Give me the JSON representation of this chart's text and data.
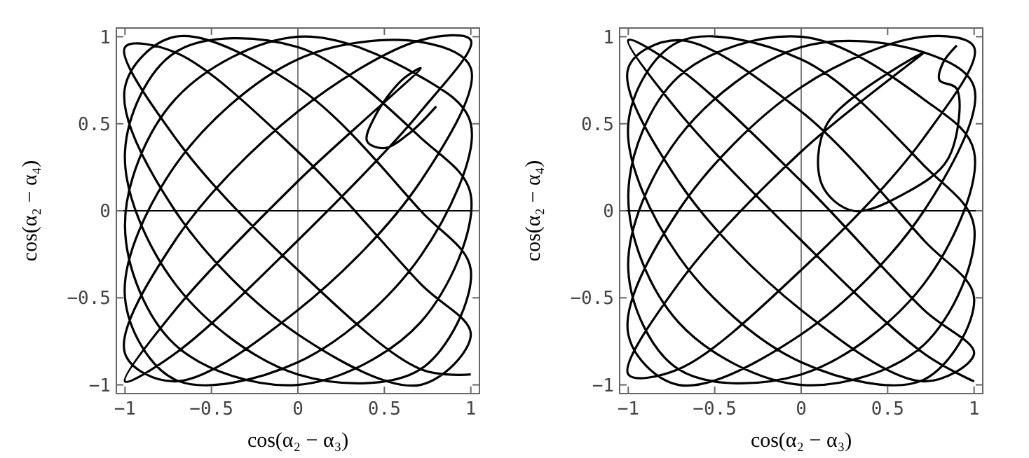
{
  "chart_data": [
    {
      "type": "line",
      "xlabel": "cos(α₂ − α₃)",
      "ylabel": "cos(α₂ − α₄)",
      "xlim": [
        -1.05,
        1.05
      ],
      "ylim": [
        -1.05,
        1.05
      ],
      "xticks": [
        -1,
        -0.5,
        0,
        0.5,
        1
      ],
      "yticks": [
        -1,
        -0.5,
        0,
        0.5,
        1
      ],
      "grid": false,
      "marker": "none",
      "line_style": "solid",
      "ref_lines": [
        {
          "axis": "x",
          "value": 0,
          "color": "#808080"
        },
        {
          "axis": "y",
          "value": 0,
          "color": "#000000"
        }
      ],
      "series": [
        {
          "color": "#000000",
          "x": [
            1,
            0.71,
            0,
            -0.71,
            -1,
            -0.71,
            0,
            0.71,
            1,
            0.71,
            0,
            -0.71,
            -1,
            -0.71,
            0,
            0.71,
            1,
            0.71,
            0,
            -0.71,
            -1,
            -0.71,
            0,
            0.71,
            1,
            0.71,
            0,
            -0.71,
            -1,
            -0.71,
            0,
            0.71,
            1,
            0.71,
            0,
            -0.71,
            -1,
            -0.71,
            0,
            0.71,
            1,
            0.71,
            0,
            -0.71,
            -1,
            -0.71,
            0,
            0.71,
            1,
            0.71,
            0,
            -0.71,
            -1,
            -0.71,
            0,
            0.71,
            0.6,
            0.45,
            0.4,
            0.5,
            0.65,
            0.8
          ],
          "values": [
            -0.94,
            -0.91,
            -0.34,
            0.42,
            0.94,
            0.91,
            0.34,
            -0.42,
            -0.71,
            -1,
            -0.71,
            0,
            0.71,
            1,
            0.71,
            0,
            -0.34,
            -0.91,
            -0.94,
            -0.42,
            0.34,
            0.91,
            0.94,
            0.42,
            0.09,
            -0.64,
            -1,
            -0.77,
            -0.09,
            0.64,
            1,
            0.77,
            0.5,
            -0.26,
            -0.87,
            -0.97,
            -0.5,
            0.26,
            0.87,
            0.97,
            0.82,
            0.17,
            -0.57,
            -0.98,
            -0.82,
            -0.17,
            0.57,
            0.98,
            0.98,
            0.57,
            -0.17,
            -0.82,
            -0.98,
            -0.57,
            0.17,
            0.82,
            0.75,
            0.55,
            0.4,
            0.36,
            0.45,
            0.6
          ]
        }
      ]
    },
    {
      "type": "line",
      "xlabel": "cos(α₂ − α₃)",
      "ylabel": "cos(α₂ − α₄)",
      "xlim": [
        -1.05,
        1.05
      ],
      "ylim": [
        -1.05,
        1.05
      ],
      "xticks": [
        -1,
        -0.5,
        0,
        0.5,
        1
      ],
      "yticks": [
        -1,
        -0.5,
        0,
        0.5,
        1
      ],
      "grid": false,
      "marker": "none",
      "line_style": "solid",
      "ref_lines": [
        {
          "axis": "x",
          "value": 0,
          "color": "#808080"
        },
        {
          "axis": "y",
          "value": 0,
          "color": "#000000"
        }
      ],
      "series": [
        {
          "color": "#000000",
          "x": [
            1,
            0.71,
            0,
            -0.71,
            -1,
            -0.71,
            0,
            0.71,
            1,
            0.71,
            0,
            -0.71,
            -1,
            -0.71,
            0,
            0.71,
            1,
            0.71,
            0,
            -0.71,
            -1,
            -0.71,
            0,
            0.71,
            1,
            0.71,
            0,
            -0.71,
            -1,
            -0.71,
            0,
            0.71,
            1,
            0.71,
            0,
            -0.71,
            -1,
            -0.71,
            0,
            0.71,
            1,
            0.71,
            0,
            -0.71,
            -1,
            -0.71,
            0,
            0.71,
            1,
            0.71,
            0,
            -0.71,
            -1,
            -0.71,
            0,
            0.71,
            0.15,
            0.12,
            0.3,
            0.6,
            0.85,
            0.9,
            0.8,
            0.82,
            0.9
          ],
          "values": [
            -0.98,
            -0.82,
            -0.17,
            0.57,
            0.98,
            0.82,
            0.17,
            -0.57,
            -0.82,
            -0.98,
            -0.57,
            0.17,
            0.82,
            0.98,
            0.57,
            -0.17,
            -0.5,
            -0.97,
            -0.87,
            -0.26,
            0.5,
            0.97,
            0.87,
            0.26,
            -0.09,
            -0.77,
            -1,
            -0.64,
            0.09,
            0.77,
            1,
            0.64,
            0.34,
            -0.42,
            -0.94,
            -0.91,
            -0.34,
            0.42,
            0.94,
            0.91,
            0.71,
            0,
            -0.71,
            -1,
            -0.71,
            0,
            0.71,
            1,
            0.94,
            0.42,
            -0.34,
            -0.91,
            -0.94,
            -0.42,
            0.34,
            0.91,
            0.5,
            0.15,
            0,
            0.1,
            0.3,
            0.7,
            0.75,
            0.85,
            0.95
          ]
        }
      ]
    }
  ]
}
